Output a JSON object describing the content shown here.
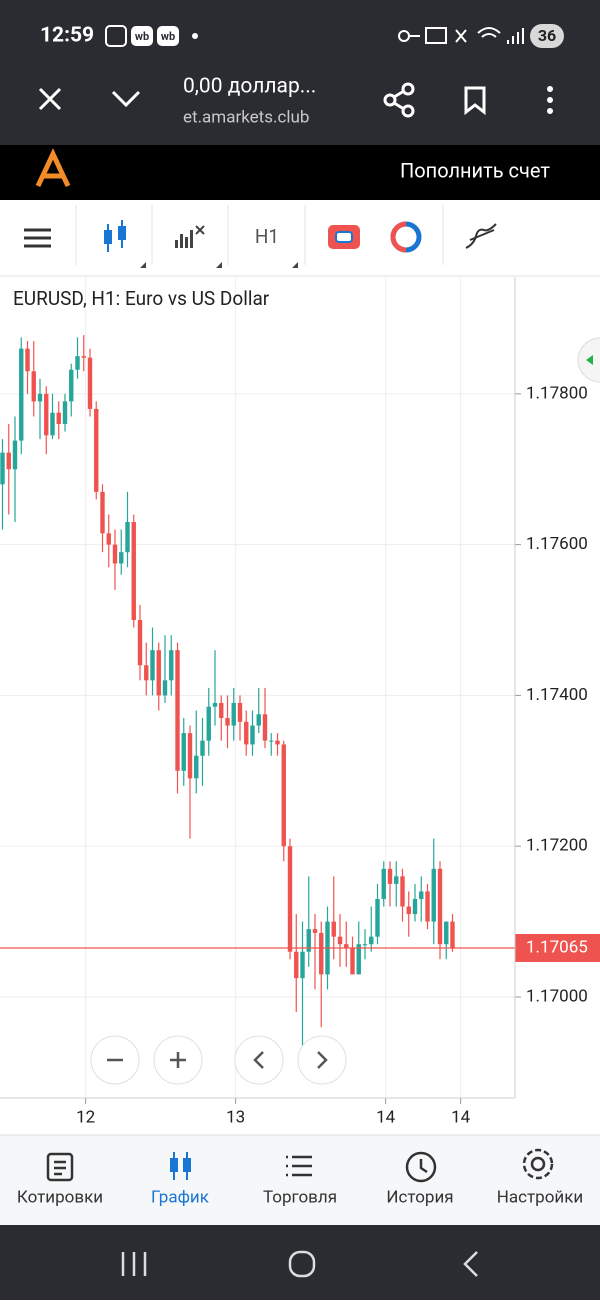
{
  "status_bar": {
    "time": "12:59",
    "icons": [
      "wb",
      "wb"
    ],
    "battery": "36"
  },
  "browser": {
    "title": "0,00 доллар...",
    "url": "et.amarkets.club"
  },
  "header": {
    "button": "Пополнить счет"
  },
  "toolbar": {
    "timeframe": "H1"
  },
  "chart_data": {
    "type": "candlestick",
    "title": "EURUSD, H1: Euro vs US Dollar",
    "up_color": "#26a69a",
    "down_color": "#ef5350",
    "grid": true,
    "x": [
      0,
      1,
      2,
      3,
      4,
      5,
      6,
      7,
      8,
      9,
      10,
      11,
      12,
      13,
      14,
      15,
      16,
      17,
      18,
      19,
      20,
      21,
      22,
      23,
      24,
      25,
      26,
      27,
      28,
      29,
      30,
      31,
      32,
      33,
      34,
      35,
      36,
      37,
      38,
      39,
      40,
      41,
      42,
      43,
      44,
      45,
      46,
      47,
      48,
      49,
      50,
      51,
      52,
      53,
      54,
      55,
      56,
      57,
      58,
      59,
      60,
      61,
      62,
      63,
      64,
      65,
      66,
      67,
      68,
      69,
      70,
      71,
      72
    ],
    "open": [
      1.1768,
      1.17722,
      1.177,
      1.17738,
      1.1786,
      1.1783,
      1.1779,
      1.178,
      1.17745,
      1.17775,
      1.1776,
      1.1779,
      1.17832,
      1.1785,
      1.17848,
      1.1778,
      1.1767,
      1.17615,
      1.176,
      1.17575,
      1.1759,
      1.1763,
      1.175,
      1.1744,
      1.1742,
      1.1746,
      1.174,
      1.1742,
      1.1746,
      1.173,
      1.1735,
      1.1729,
      1.1732,
      1.1734,
      1.17385,
      1.1739,
      1.1737,
      1.1736,
      1.1739,
      1.17365,
      1.17335,
      1.1736,
      1.17375,
      1.1734,
      1.1734,
      1.17335,
      1.172,
      1.1706,
      1.17025,
      1.1706,
      1.1709,
      1.17085,
      1.1703,
      1.171,
      1.1708,
      1.1707,
      1.17065,
      1.1703,
      1.1707,
      1.1707,
      1.1708,
      1.1713,
      1.1717,
      1.1715,
      1.1716,
      1.1712,
      1.1711,
      1.1713,
      1.1714,
      1.171,
      1.1717,
      1.1707,
      1.171
    ],
    "high": [
      1.1774,
      1.1776,
      1.1777,
      1.17875,
      1.1787,
      1.1787,
      1.1782,
      1.1781,
      1.178,
      1.1779,
      1.178,
      1.1784,
      1.17875,
      1.17878,
      1.1786,
      1.1779,
      1.1768,
      1.1764,
      1.1762,
      1.1762,
      1.1767,
      1.1764,
      1.1752,
      1.1747,
      1.1749,
      1.1747,
      1.1748,
      1.1748,
      1.1747,
      1.1737,
      1.1736,
      1.1738,
      1.1737,
      1.1741,
      1.1746,
      1.174,
      1.174,
      1.1741,
      1.174,
      1.1738,
      1.1738,
      1.1741,
      1.1741,
      1.1735,
      1.1735,
      1.1734,
      1.1721,
      1.1711,
      1.171,
      1.1716,
      1.1711,
      1.171,
      1.1712,
      1.1716,
      1.1711,
      1.171,
      1.1708,
      1.171,
      1.1709,
      1.1712,
      1.1715,
      1.1718,
      1.1718,
      1.1718,
      1.1717,
      1.1714,
      1.1715,
      1.1716,
      1.1715,
      1.1721,
      1.1718,
      1.171,
      1.1711
    ],
    "low": [
      1.1762,
      1.1764,
      1.1763,
      1.1772,
      1.178,
      1.1777,
      1.1774,
      1.1772,
      1.1774,
      1.1774,
      1.1775,
      1.1777,
      1.1782,
      1.1783,
      1.1777,
      1.1766,
      1.1759,
      1.1757,
      1.1754,
      1.1756,
      1.1757,
      1.1749,
      1.1742,
      1.174,
      1.174,
      1.1738,
      1.1739,
      1.174,
      1.1727,
      1.1728,
      1.1721,
      1.1727,
      1.1728,
      1.1732,
      1.1736,
      1.1734,
      1.1733,
      1.1734,
      1.1734,
      1.1732,
      1.1732,
      1.1735,
      1.1733,
      1.1732,
      1.1732,
      1.1718,
      1.1705,
      1.1698,
      1.1693,
      1.1704,
      1.1701,
      1.1696,
      1.1701,
      1.1705,
      1.1704,
      1.1704,
      1.1703,
      1.1703,
      1.1705,
      1.1706,
      1.1707,
      1.1712,
      1.1712,
      1.1712,
      1.171,
      1.1708,
      1.171,
      1.171,
      1.1709,
      1.1707,
      1.1705,
      1.1705,
      1.1706
    ],
    "close": [
      1.17722,
      1.177,
      1.17738,
      1.1786,
      1.1783,
      1.1779,
      1.178,
      1.17745,
      1.17775,
      1.1776,
      1.1779,
      1.17832,
      1.1785,
      1.17848,
      1.1778,
      1.1767,
      1.17615,
      1.176,
      1.17575,
      1.1759,
      1.1763,
      1.175,
      1.1744,
      1.1742,
      1.1746,
      1.174,
      1.1742,
      1.1746,
      1.173,
      1.1735,
      1.1729,
      1.1732,
      1.1734,
      1.17385,
      1.1739,
      1.1737,
      1.1736,
      1.1739,
      1.17365,
      1.17335,
      1.1736,
      1.17375,
      1.1734,
      1.1734,
      1.17335,
      1.172,
      1.1706,
      1.17025,
      1.1706,
      1.1709,
      1.17085,
      1.1703,
      1.171,
      1.1708,
      1.1707,
      1.17065,
      1.1703,
      1.1707,
      1.1707,
      1.1708,
      1.1713,
      1.1717,
      1.1715,
      1.1716,
      1.1712,
      1.1711,
      1.1713,
      1.1714,
      1.171,
      1.1717,
      1.1707,
      1.171,
      1.17065
    ],
    "xlim": [
      -0.4,
      82
    ],
    "xticks": [
      {
        "value": 13.3,
        "label": "12"
      },
      {
        "value": 37.3,
        "label": "13"
      },
      {
        "value": 61.3,
        "label": "14"
      },
      {
        "value": 73.3,
        "label": "14"
      }
    ],
    "ylim": [
      1.16866,
      1.17955
    ],
    "yticks": [
      {
        "value": 1.17,
        "label": "1.17000"
      },
      {
        "value": 1.172,
        "label": "1.17200"
      },
      {
        "value": 1.174,
        "label": "1.17400"
      },
      {
        "value": 1.176,
        "label": "1.17600"
      },
      {
        "value": 1.178,
        "label": "1.17800"
      }
    ],
    "last_price": 1.17065,
    "last_price_color": "#ef5350"
  },
  "bottom_nav": [
    "Котировки",
    "График",
    "Торговля",
    "История",
    "Настройки"
  ]
}
